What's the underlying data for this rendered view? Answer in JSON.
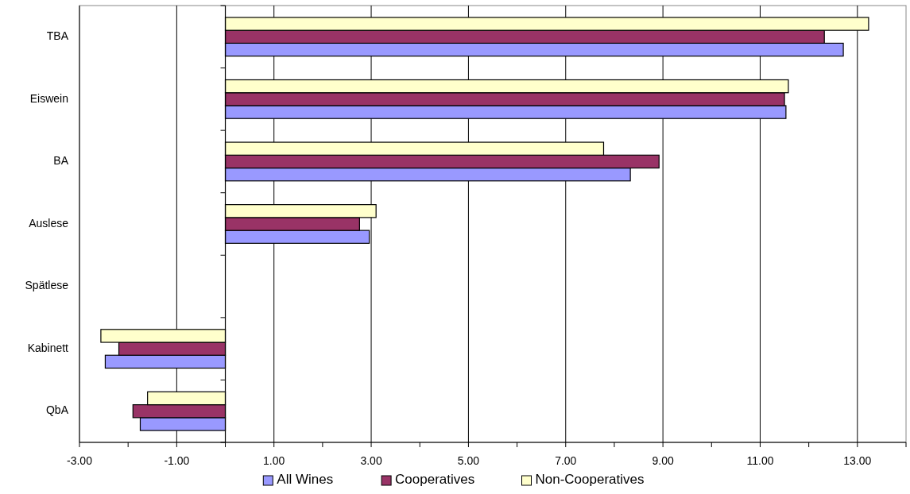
{
  "chart_data": {
    "type": "bar",
    "orientation": "horizontal",
    "categories": [
      "TBA",
      "Eiswein",
      "BA",
      "Auslese",
      "Spätlese",
      "Kabinett",
      "QbA"
    ],
    "series": [
      {
        "name": "All Wines",
        "color": "#9999ff",
        "values": [
          12.71,
          11.53,
          8.33,
          2.96,
          0,
          -2.47,
          -1.75
        ]
      },
      {
        "name": "Cooperatives",
        "color": "#993366",
        "values": [
          12.32,
          11.5,
          8.92,
          2.76,
          0,
          -2.19,
          -1.9
        ]
      },
      {
        "name": "Non-Cooperatives",
        "color": "#ffffcc",
        "values": [
          13.23,
          11.58,
          7.78,
          3.1,
          0,
          -2.56,
          -1.6
        ]
      }
    ],
    "xlim": [
      -3,
      14
    ],
    "xticks": [
      {
        "value": -3,
        "label": "-3.00"
      },
      {
        "value": -2,
        "label": null
      },
      {
        "value": -1,
        "label": "-1.00"
      },
      {
        "value": 0,
        "label": null
      },
      {
        "value": 1,
        "label": "1.00"
      },
      {
        "value": 2,
        "label": null
      },
      {
        "value": 3,
        "label": "3.00"
      },
      {
        "value": 4,
        "label": null
      },
      {
        "value": 5,
        "label": "5.00"
      },
      {
        "value": 6,
        "label": null
      },
      {
        "value": 7,
        "label": "7.00"
      },
      {
        "value": 8,
        "label": null
      },
      {
        "value": 9,
        "label": "9.00"
      },
      {
        "value": 10,
        "label": null
      },
      {
        "value": 11,
        "label": "11.00"
      },
      {
        "value": 12,
        "label": null
      },
      {
        "value": 13,
        "label": "13.00"
      },
      {
        "value": 14,
        "label": null
      }
    ],
    "grid": "x",
    "legend": "bottom"
  }
}
